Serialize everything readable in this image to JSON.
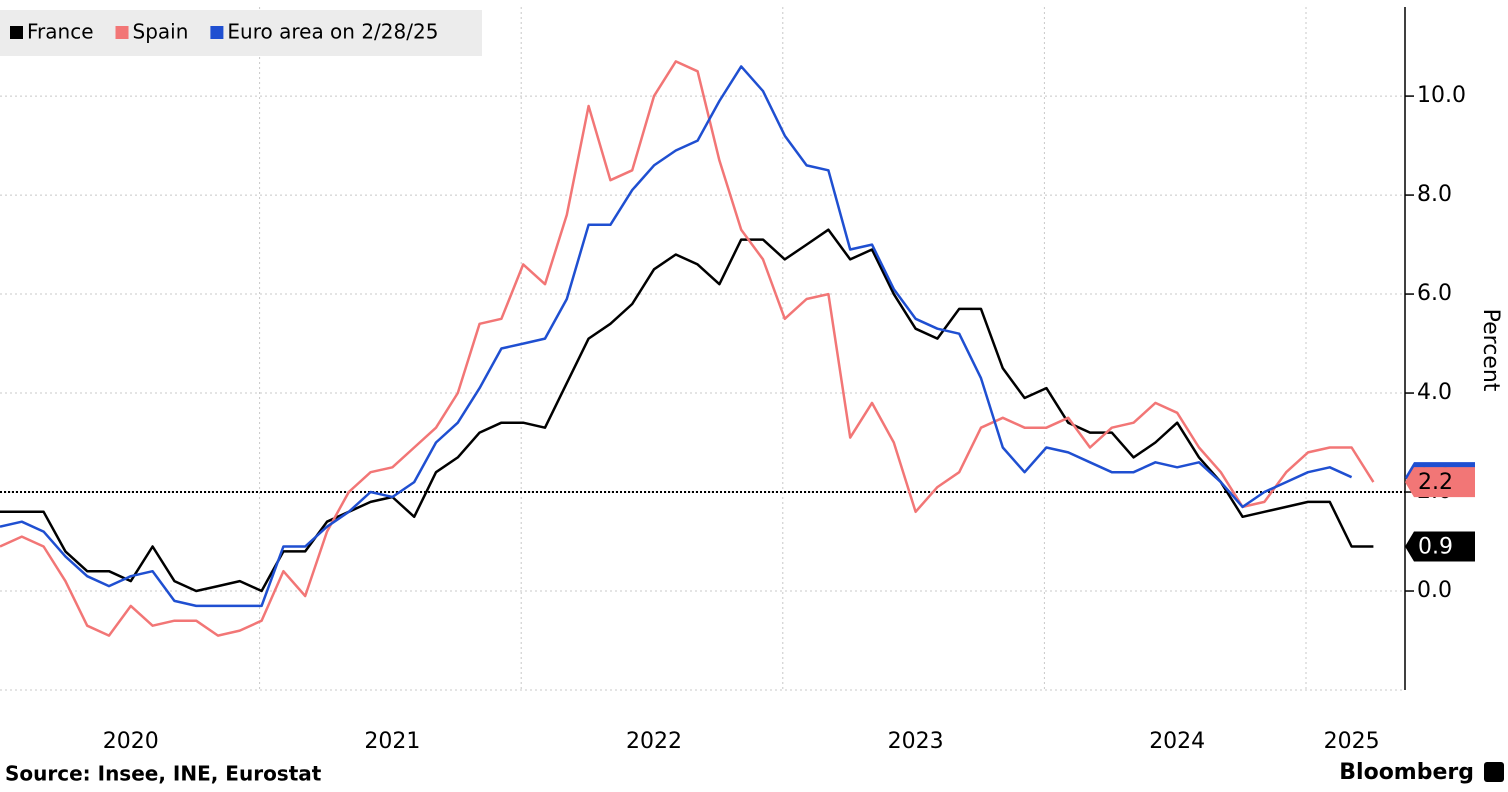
{
  "chart_data": {
    "type": "line",
    "categories": [
      null,
      null,
      null,
      null,
      null,
      null,
      "2020",
      null,
      null,
      null,
      null,
      null,
      null,
      null,
      null,
      null,
      null,
      null,
      "2021",
      null,
      null,
      null,
      null,
      null,
      null,
      null,
      null,
      null,
      null,
      null,
      "2022",
      null,
      null,
      null,
      null,
      null,
      null,
      null,
      null,
      null,
      null,
      null,
      "2023",
      null,
      null,
      null,
      null,
      null,
      null,
      null,
      null,
      null,
      null,
      null,
      "2024",
      null,
      null,
      null,
      null,
      null,
      null,
      null,
      "2025",
      null
    ],
    "series": [
      {
        "name": "France",
        "color": "#000000",
        "values": [
          1.6,
          1.6,
          1.6,
          0.8,
          0.4,
          0.4,
          0.2,
          0.9,
          0.2,
          0.0,
          0.1,
          0.2,
          0.0,
          0.8,
          0.8,
          1.4,
          1.6,
          1.8,
          1.9,
          1.5,
          2.4,
          2.7,
          3.2,
          3.4,
          3.4,
          3.3,
          4.2,
          5.1,
          5.4,
          5.8,
          6.5,
          6.8,
          6.6,
          6.2,
          7.1,
          7.1,
          6.7,
          7.0,
          7.3,
          6.7,
          6.9,
          6.0,
          5.3,
          5.1,
          5.7,
          5.7,
          4.5,
          3.9,
          4.1,
          3.4,
          3.2,
          3.2,
          2.7,
          3.0,
          3.4,
          2.7,
          2.2,
          1.5,
          1.6,
          1.7,
          1.8,
          1.8,
          0.9,
          0.9
        ]
      },
      {
        "name": "Spain",
        "color": "#f27676",
        "values": [
          0.9,
          1.1,
          0.9,
          0.2,
          -0.7,
          -0.9,
          -0.3,
          -0.7,
          -0.6,
          -0.6,
          -0.9,
          -0.8,
          -0.6,
          0.4,
          -0.1,
          1.2,
          2.0,
          2.4,
          2.5,
          2.9,
          3.3,
          4.0,
          5.4,
          5.5,
          6.6,
          6.2,
          7.6,
          9.8,
          8.3,
          8.5,
          10.0,
          10.7,
          10.5,
          8.7,
          7.3,
          6.7,
          5.5,
          5.9,
          6.0,
          3.1,
          3.8,
          3.0,
          1.6,
          2.1,
          2.4,
          3.3,
          3.5,
          3.3,
          3.3,
          3.5,
          2.9,
          3.3,
          3.4,
          3.8,
          3.6,
          2.9,
          2.4,
          1.7,
          1.8,
          2.4,
          2.8,
          2.9,
          2.9,
          2.2
        ]
      },
      {
        "name": "Euro area on 2/28/25",
        "color": "#1f4fd1",
        "values": [
          1.3,
          1.4,
          1.2,
          0.7,
          0.3,
          0.1,
          0.3,
          0.4,
          -0.2,
          -0.3,
          -0.3,
          -0.3,
          -0.3,
          0.9,
          0.9,
          1.3,
          1.6,
          2.0,
          1.9,
          2.2,
          3.0,
          3.4,
          4.1,
          4.9,
          5.0,
          5.1,
          5.9,
          7.4,
          7.4,
          8.1,
          8.6,
          8.9,
          9.1,
          9.9,
          10.6,
          10.1,
          9.2,
          8.6,
          8.5,
          6.9,
          7.0,
          6.1,
          5.5,
          5.3,
          5.2,
          4.3,
          2.9,
          2.4,
          2.9,
          2.8,
          2.6,
          2.4,
          2.4,
          2.6,
          2.5,
          2.6,
          2.2,
          1.7,
          2.0,
          2.2,
          2.4,
          2.5,
          2.3,
          null
        ]
      }
    ],
    "ylim": [
      -2,
      11.8
    ],
    "yticks": [
      {
        "value": 0,
        "label": "0.0"
      },
      {
        "value": 2,
        "label": "2.0"
      },
      {
        "value": 4,
        "label": "4.0"
      },
      {
        "value": 6,
        "label": "6.0"
      },
      {
        "value": 8,
        "label": "8.0"
      },
      {
        "value": 10,
        "label": "10.0"
      }
    ],
    "reference_line": 2,
    "grid": true,
    "y_label": "Percent",
    "source": "Source: Insee, INE, Eurostat",
    "brand": "Bloomberg"
  }
}
